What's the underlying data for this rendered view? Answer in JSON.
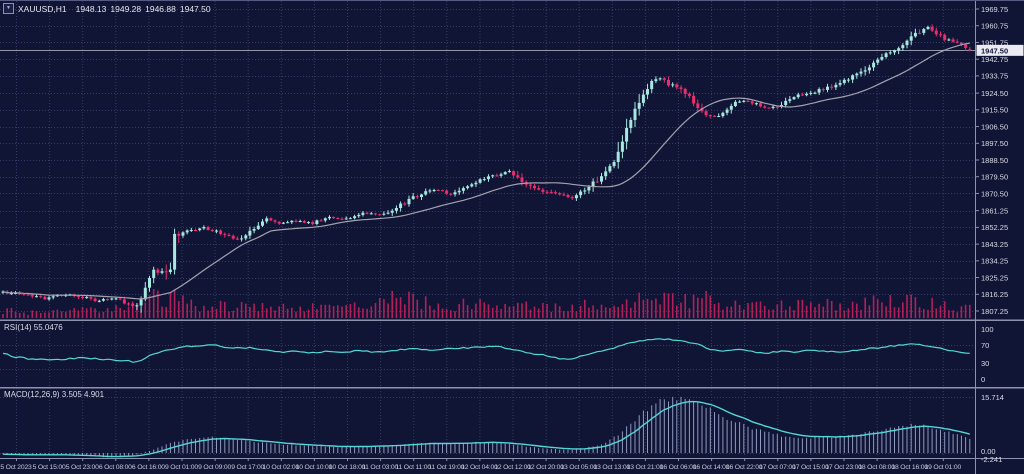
{
  "window": {
    "symbol": "XAUUSD,H1",
    "ohlc": {
      "open": "1948.13",
      "high": "1949.28",
      "low": "1946.88",
      "close": "1947.50"
    }
  },
  "indicators": {
    "rsi": {
      "label": "RSI(14) 55.0476"
    },
    "macd": {
      "label": "MACD(12,26,9) 3.505 4.901"
    }
  },
  "axes": {
    "price_labels": [
      "1969.75",
      "1960.75",
      "1951.75",
      "1942.75",
      "1933.75",
      "1924.50",
      "1915.50",
      "1906.50",
      "1897.50",
      "1888.50",
      "1879.50",
      "1870.50",
      "1861.25",
      "1852.25",
      "1843.25",
      "1834.25",
      "1825.25",
      "1816.25",
      "1807.25"
    ],
    "current_price": "1947.50",
    "rsi_labels": [
      "100",
      "70",
      "30",
      "0"
    ],
    "macd_labels": [
      "15.714",
      "0.00",
      "-2.241"
    ],
    "time_labels": [
      "5 Oct 2023",
      "5 Oct 15:00",
      "5 Oct 23:00",
      "6 Oct 08:00",
      "6 Oct 16:00",
      "9 Oct 01:00",
      "9 Oct 09:00",
      "9 Oct 17:00",
      "10 Oct 02:00",
      "10 Oct 10:00",
      "10 Oct 18:00",
      "11 Oct 03:00",
      "11 Oct 11:00",
      "11 Oct 19:00",
      "12 Oct 04:00",
      "12 Oct 12:00",
      "12 Oct 20:00",
      "13 Oct 05:00",
      "13 Oct 13:00",
      "13 Oct 21:00",
      "16 Oct 06:00",
      "16 Oct 14:00",
      "16 Oct 22:00",
      "17 Oct 07:00",
      "17 Oct 15:00",
      "17 Oct 23:00",
      "18 Oct 08:00",
      "18 Oct 16:00",
      "19 Oct 01:00"
    ]
  },
  "colors": {
    "background": "#101435",
    "grid": "#363c6a",
    "bull": "#a7e9e1",
    "bear": "#ea2e6e",
    "volume": "#b12058",
    "moving_average": "#a3a3af",
    "indicator_line": "#52d7d5",
    "macd_histogram": "#9099be",
    "axis_text": "#dcdce6",
    "time_text": "#c9c9d6",
    "separator": "#8e93ad",
    "price_line": "#c0c0cc",
    "price_box_bg": "#ebebf1",
    "price_box_text": "#10143a"
  },
  "chart_data": {
    "type": "candlestick",
    "symbol": "XAUUSD",
    "timeframe": "H1",
    "bar_count": 232,
    "price_range": [
      1807.25,
      1969.75
    ],
    "current_price": 1947.5,
    "last_bar": {
      "open": 1948.13,
      "high": 1949.28,
      "low": 1946.88,
      "close": 1947.5
    },
    "price_path": [
      [
        0,
        1818
      ],
      [
        20,
        1816
      ],
      [
        45,
        1814
      ],
      [
        70,
        1816.5
      ],
      [
        95,
        1813
      ],
      [
        115,
        1814
      ],
      [
        130,
        1811
      ],
      [
        138,
        1809
      ],
      [
        146,
        1820
      ],
      [
        152,
        1829
      ],
      [
        162,
        1827.5
      ],
      [
        170,
        1828
      ],
      [
        174,
        1847
      ],
      [
        188,
        1851
      ],
      [
        205,
        1852
      ],
      [
        220,
        1849
      ],
      [
        237,
        1845.5
      ],
      [
        252,
        1851
      ],
      [
        266,
        1857
      ],
      [
        280,
        1854
      ],
      [
        296,
        1856
      ],
      [
        312,
        1854.5
      ],
      [
        328,
        1857.5
      ],
      [
        344,
        1856
      ],
      [
        360,
        1860
      ],
      [
        376,
        1859
      ],
      [
        392,
        1861
      ],
      [
        406,
        1866
      ],
      [
        420,
        1870
      ],
      [
        436,
        1872.5
      ],
      [
        452,
        1870
      ],
      [
        468,
        1875
      ],
      [
        484,
        1878
      ],
      [
        500,
        1881
      ],
      [
        508,
        1883
      ],
      [
        518,
        1879
      ],
      [
        530,
        1874
      ],
      [
        544,
        1871.5
      ],
      [
        560,
        1869.5
      ],
      [
        575,
        1868
      ],
      [
        588,
        1874
      ],
      [
        600,
        1879
      ],
      [
        612,
        1886
      ],
      [
        622,
        1898
      ],
      [
        632,
        1912
      ],
      [
        642,
        1924
      ],
      [
        652,
        1931
      ],
      [
        660,
        1933
      ],
      [
        668,
        1929.5
      ],
      [
        678,
        1927
      ],
      [
        692,
        1921
      ],
      [
        705,
        1913
      ],
      [
        718,
        1912.5
      ],
      [
        730,
        1918
      ],
      [
        742,
        1921
      ],
      [
        756,
        1918.5
      ],
      [
        770,
        1916
      ],
      [
        784,
        1919
      ],
      [
        800,
        1923.5
      ],
      [
        816,
        1925.5
      ],
      [
        832,
        1928
      ],
      [
        848,
        1932
      ],
      [
        864,
        1937
      ],
      [
        880,
        1943
      ],
      [
        895,
        1948
      ],
      [
        908,
        1952.5
      ],
      [
        920,
        1958
      ],
      [
        928,
        1960
      ],
      [
        938,
        1956.5
      ],
      [
        948,
        1953
      ],
      [
        958,
        1951.5
      ],
      [
        968,
        1949
      ],
      [
        975,
        1947.8
      ]
    ],
    "volume_profile": [
      [
        0,
        0.3
      ],
      [
        30,
        0.22
      ],
      [
        60,
        0.25
      ],
      [
        90,
        0.3
      ],
      [
        120,
        0.35
      ],
      [
        140,
        0.55
      ],
      [
        150,
        0.9
      ],
      [
        162,
        0.65
      ],
      [
        174,
        0.75
      ],
      [
        190,
        0.5
      ],
      [
        210,
        0.42
      ],
      [
        230,
        0.48
      ],
      [
        250,
        0.52
      ],
      [
        270,
        0.45
      ],
      [
        290,
        0.4
      ],
      [
        310,
        0.42
      ],
      [
        330,
        0.38
      ],
      [
        350,
        0.42
      ],
      [
        370,
        0.5
      ],
      [
        390,
        0.65
      ],
      [
        402,
        0.95
      ],
      [
        412,
        0.7
      ],
      [
        430,
        0.55
      ],
      [
        450,
        0.48
      ],
      [
        470,
        0.52
      ],
      [
        490,
        0.48
      ],
      [
        510,
        0.52
      ],
      [
        530,
        0.42
      ],
      [
        550,
        0.38
      ],
      [
        570,
        0.42
      ],
      [
        590,
        0.5
      ],
      [
        610,
        0.58
      ],
      [
        630,
        0.72
      ],
      [
        650,
        0.82
      ],
      [
        668,
        0.72
      ],
      [
        685,
        0.62
      ],
      [
        702,
        0.78
      ],
      [
        718,
        0.55
      ],
      [
        738,
        0.48
      ],
      [
        758,
        0.42
      ],
      [
        778,
        0.46
      ],
      [
        798,
        0.52
      ],
      [
        818,
        0.47
      ],
      [
        838,
        0.52
      ],
      [
        858,
        0.58
      ],
      [
        878,
        0.68
      ],
      [
        898,
        0.72
      ],
      [
        918,
        0.66
      ],
      [
        938,
        0.55
      ],
      [
        958,
        0.42
      ],
      [
        975,
        0.32
      ]
    ],
    "moving_average": {
      "period": 24
    },
    "rsi": {
      "period": 14,
      "current": 55.0476,
      "levels": [
        70,
        30
      ],
      "range": [
        0,
        100
      ],
      "path": [
        [
          0,
          58
        ],
        [
          15,
          50
        ],
        [
          30,
          47
        ],
        [
          55,
          45
        ],
        [
          80,
          49
        ],
        [
          105,
          46
        ],
        [
          125,
          44
        ],
        [
          138,
          41
        ],
        [
          148,
          52
        ],
        [
          160,
          58
        ],
        [
          172,
          63
        ],
        [
          185,
          67
        ],
        [
          200,
          69
        ],
        [
          215,
          70
        ],
        [
          228,
          64
        ],
        [
          242,
          66
        ],
        [
          255,
          65
        ],
        [
          268,
          61
        ],
        [
          282,
          58
        ],
        [
          295,
          60
        ],
        [
          310,
          57
        ],
        [
          325,
          59
        ],
        [
          340,
          58
        ],
        [
          355,
          60
        ],
        [
          370,
          59
        ],
        [
          385,
          58
        ],
        [
          400,
          62
        ],
        [
          415,
          64
        ],
        [
          430,
          62
        ],
        [
          448,
          64
        ],
        [
          465,
          65
        ],
        [
          482,
          67
        ],
        [
          500,
          68
        ],
        [
          512,
          62
        ],
        [
          525,
          58
        ],
        [
          540,
          54
        ],
        [
          555,
          49
        ],
        [
          570,
          45
        ],
        [
          582,
          52
        ],
        [
          595,
          57
        ],
        [
          608,
          62
        ],
        [
          622,
          70
        ],
        [
          638,
          76
        ],
        [
          652,
          79
        ],
        [
          665,
          80
        ],
        [
          680,
          77
        ],
        [
          695,
          73
        ],
        [
          708,
          64
        ],
        [
          722,
          60
        ],
        [
          736,
          63
        ],
        [
          750,
          59
        ],
        [
          765,
          56
        ],
        [
          780,
          60
        ],
        [
          795,
          58
        ],
        [
          810,
          61
        ],
        [
          825,
          59
        ],
        [
          840,
          58
        ],
        [
          855,
          61
        ],
        [
          870,
          64
        ],
        [
          885,
          67
        ],
        [
          900,
          70
        ],
        [
          915,
          72
        ],
        [
          928,
          68
        ],
        [
          940,
          64
        ],
        [
          952,
          60
        ],
        [
          964,
          57
        ],
        [
          975,
          55
        ]
      ]
    },
    "macd": {
      "fast": 12,
      "slow": 26,
      "signal_period": 9,
      "main_current": 3.505,
      "signal_current": 4.901,
      "scale_max": 15.714,
      "scale_min": -2.241,
      "main_path": [
        [
          0,
          -0.3
        ],
        [
          25,
          -0.6
        ],
        [
          50,
          -0.4
        ],
        [
          80,
          -0.8
        ],
        [
          110,
          -1.2
        ],
        [
          135,
          -0.6
        ],
        [
          148,
          0.5
        ],
        [
          160,
          1.8
        ],
        [
          174,
          3.2
        ],
        [
          190,
          4.0
        ],
        [
          210,
          4.5
        ],
        [
          230,
          4.0
        ],
        [
          250,
          3.4
        ],
        [
          270,
          2.8
        ],
        [
          290,
          2.3
        ],
        [
          310,
          2.0
        ],
        [
          330,
          1.8
        ],
        [
          350,
          1.7
        ],
        [
          370,
          1.9
        ],
        [
          390,
          2.2
        ],
        [
          410,
          2.6
        ],
        [
          430,
          2.9
        ],
        [
          450,
          2.7
        ],
        [
          470,
          2.9
        ],
        [
          490,
          3.1
        ],
        [
          510,
          2.5
        ],
        [
          530,
          1.7
        ],
        [
          550,
          1.1
        ],
        [
          570,
          0.8
        ],
        [
          590,
          1.6
        ],
        [
          605,
          2.8
        ],
        [
          620,
          5.5
        ],
        [
          635,
          9.5
        ],
        [
          650,
          13
        ],
        [
          665,
          15.2
        ],
        [
          678,
          15.714
        ],
        [
          690,
          15.1
        ],
        [
          705,
          13.2
        ],
        [
          720,
          10.8
        ],
        [
          735,
          8.8
        ],
        [
          750,
          7.2
        ],
        [
          765,
          5.9
        ],
        [
          780,
          5.0
        ],
        [
          800,
          4.2
        ],
        [
          820,
          4.3
        ],
        [
          840,
          4.7
        ],
        [
          860,
          5.4
        ],
        [
          880,
          6.4
        ],
        [
          900,
          7.4
        ],
        [
          915,
          7.9
        ],
        [
          928,
          7.6
        ],
        [
          940,
          6.7
        ],
        [
          952,
          5.6
        ],
        [
          964,
          4.5
        ],
        [
          975,
          3.505
        ]
      ]
    }
  }
}
